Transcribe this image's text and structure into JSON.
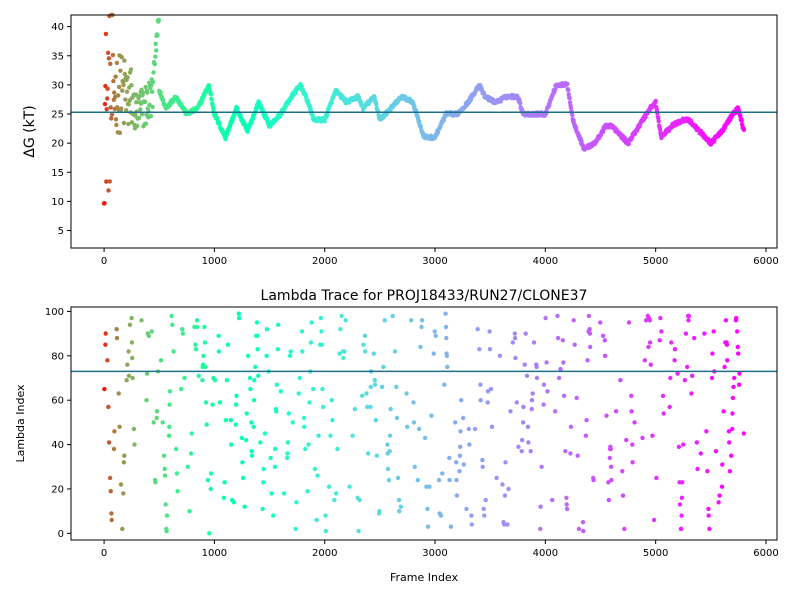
{
  "chart_data": [
    {
      "type": "scatter",
      "title": "",
      "xlabel": "",
      "ylabel": "ΔG (kT)",
      "xlim": [
        -300,
        6100
      ],
      "ylim": [
        2,
        42
      ],
      "xticks": [
        "0",
        "1000",
        "2000",
        "3000",
        "4000",
        "5000",
        "6000"
      ],
      "yticks": [
        "5",
        "10",
        "15",
        "20",
        "25",
        "30",
        "35",
        "40"
      ],
      "xtick_values": [
        0,
        1000,
        2000,
        3000,
        4000,
        5000,
        6000
      ],
      "ytick_values": [
        5,
        10,
        15,
        20,
        25,
        30,
        35,
        40
      ],
      "hline": 25.3,
      "hline_color": "#1f6f8b",
      "colormap": "rainbow",
      "x_range": [
        0,
        5800
      ],
      "trend": [
        [
          0,
          25
        ],
        [
          100,
          29
        ],
        [
          200,
          28
        ],
        [
          300,
          25
        ],
        [
          400,
          27
        ],
        [
          480,
          30
        ],
        [
          560,
          26
        ],
        [
          650,
          28
        ],
        [
          750,
          25
        ],
        [
          850,
          26
        ],
        [
          950,
          30
        ],
        [
          1000,
          25
        ],
        [
          1100,
          21
        ],
        [
          1200,
          26
        ],
        [
          1300,
          22
        ],
        [
          1400,
          27
        ],
        [
          1500,
          23
        ],
        [
          1600,
          25
        ],
        [
          1700,
          28
        ],
        [
          1780,
          30
        ],
        [
          1850,
          27
        ],
        [
          1900,
          24
        ],
        [
          2000,
          24
        ],
        [
          2100,
          29
        ],
        [
          2200,
          27
        ],
        [
          2300,
          28
        ],
        [
          2350,
          26
        ],
        [
          2450,
          28
        ],
        [
          2500,
          24
        ],
        [
          2600,
          26
        ],
        [
          2700,
          28
        ],
        [
          2800,
          27
        ],
        [
          2900,
          21
        ],
        [
          3000,
          21
        ],
        [
          3100,
          25
        ],
        [
          3200,
          25
        ],
        [
          3300,
          27
        ],
        [
          3400,
          30
        ],
        [
          3450,
          28
        ],
        [
          3550,
          27
        ],
        [
          3650,
          28
        ],
        [
          3750,
          28
        ],
        [
          3800,
          25
        ],
        [
          3900,
          25
        ],
        [
          4000,
          25
        ],
        [
          4100,
          30
        ],
        [
          4200,
          30
        ],
        [
          4250,
          24
        ],
        [
          4350,
          19
        ],
        [
          4450,
          20
        ],
        [
          4550,
          23
        ],
        [
          4600,
          23
        ],
        [
          4700,
          21
        ],
        [
          4750,
          20
        ],
        [
          4850,
          23
        ],
        [
          4950,
          26
        ],
        [
          5000,
          27
        ],
        [
          5050,
          21
        ],
        [
          5150,
          23
        ],
        [
          5250,
          24
        ],
        [
          5300,
          24
        ],
        [
          5400,
          22
        ],
        [
          5500,
          20
        ],
        [
          5600,
          22
        ],
        [
          5700,
          25
        ],
        [
          5750,
          26
        ],
        [
          5800,
          22
        ]
      ]
    },
    {
      "type": "scatter",
      "title": "Lambda Trace for PROJ18433/RUN27/CLONE37",
      "xlabel": "Frame Index",
      "ylabel": "Lambda Index",
      "xlim": [
        -300,
        6100
      ],
      "ylim": [
        -3,
        102
      ],
      "xticks": [
        "0",
        "1000",
        "2000",
        "3000",
        "4000",
        "5000",
        "6000"
      ],
      "yticks": [
        "0",
        "20",
        "40",
        "60",
        "80",
        "100"
      ],
      "xtick_values": [
        0,
        1000,
        2000,
        3000,
        4000,
        5000,
        6000
      ],
      "ytick_values": [
        0,
        20,
        40,
        60,
        80,
        100
      ],
      "hline": 73,
      "hline_color": "#1f6f8b",
      "colormap": "rainbow",
      "x_range": [
        0,
        5800
      ],
      "y_range": [
        0,
        99
      ]
    }
  ]
}
